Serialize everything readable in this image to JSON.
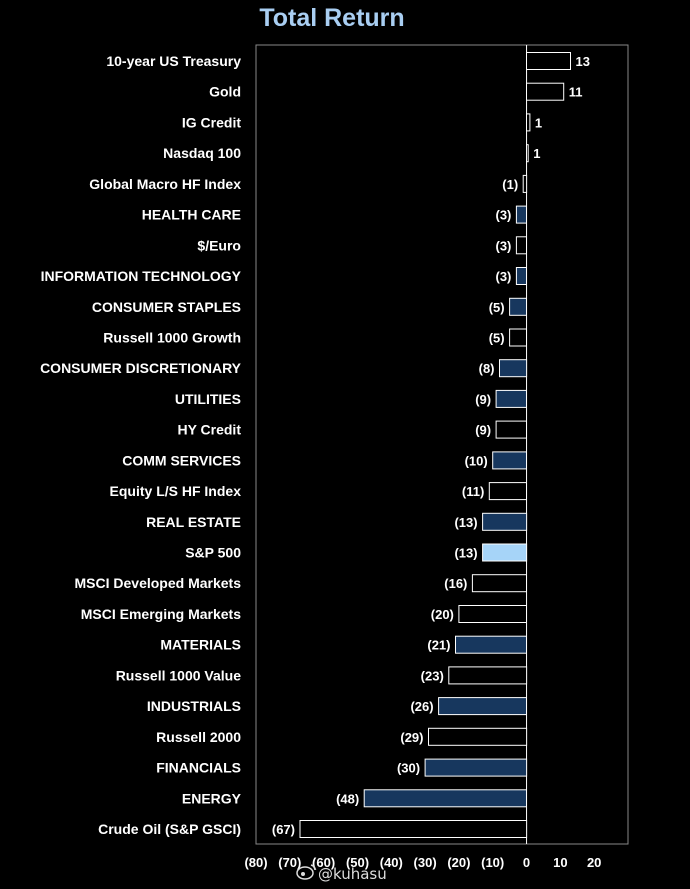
{
  "chart_data": {
    "type": "bar",
    "orientation": "horizontal",
    "title": "Total Return",
    "categories": [
      "10-year US Treasury",
      "Gold",
      "IG Credit",
      "Nasdaq 100",
      "Global Macro HF Index",
      "HEALTH CARE",
      "$/Euro",
      "INFORMATION TECHNOLOGY",
      "CONSUMER STAPLES",
      "Russell 1000 Growth",
      "CONSUMER DISCRETIONARY",
      "UTILITIES",
      "HY Credit",
      "COMM SERVICES",
      "Equity L/S HF Index",
      "REAL ESTATE",
      "S&P 500",
      "MSCI Developed Markets",
      "MSCI Emerging Markets",
      "MATERIALS",
      "Russell 1000 Value",
      "INDUSTRIALS",
      "Russell 2000",
      "FINANCIALS",
      "ENERGY",
      "Crude Oil (S&P GSCI)"
    ],
    "values": [
      13,
      11,
      1,
      0.5,
      -1,
      -3,
      -3,
      -3,
      -5,
      -5,
      -8,
      -9,
      -9,
      -10,
      -11,
      -13,
      -13,
      -16,
      -20,
      -21,
      -23,
      -26,
      -29,
      -30,
      -48,
      -67
    ],
    "value_labels": [
      "13",
      "11",
      "1",
      "1",
      "(1)",
      "(3)",
      "(3)",
      "(3)",
      "(5)",
      "(5)",
      "(8)",
      "(9)",
      "(9)",
      "(10)",
      "(11)",
      "(13)",
      "(13)",
      "(16)",
      "(20)",
      "(21)",
      "(23)",
      "(26)",
      "(29)",
      "(30)",
      "(48)",
      "(67)"
    ],
    "bar_kind": [
      "asset",
      "asset",
      "asset",
      "asset",
      "asset",
      "sector",
      "asset",
      "sector",
      "sector",
      "asset",
      "sector",
      "sector",
      "asset",
      "sector",
      "asset",
      "sector",
      "highlight",
      "asset",
      "asset",
      "sector",
      "asset",
      "sector",
      "asset",
      "sector",
      "sector",
      "asset"
    ],
    "colors": {
      "asset": "#000000",
      "sector": "#17375e",
      "highlight": "#a6d4f8",
      "outline": "#ffffff",
      "title": "#a9cef2",
      "frame": "#888888"
    },
    "xlim": [
      -80,
      30
    ],
    "xticks": [
      -80,
      -70,
      -60,
      -50,
      -40,
      -30,
      -20,
      -10,
      0,
      10,
      20
    ],
    "xtick_labels": [
      "(80)",
      "(70)",
      "(60)",
      "(50)",
      "(40)",
      "(30)",
      "(20)",
      "(10)",
      "0",
      "10",
      "20"
    ],
    "grid": false,
    "legend": "none"
  },
  "watermark": "@kuhasu"
}
